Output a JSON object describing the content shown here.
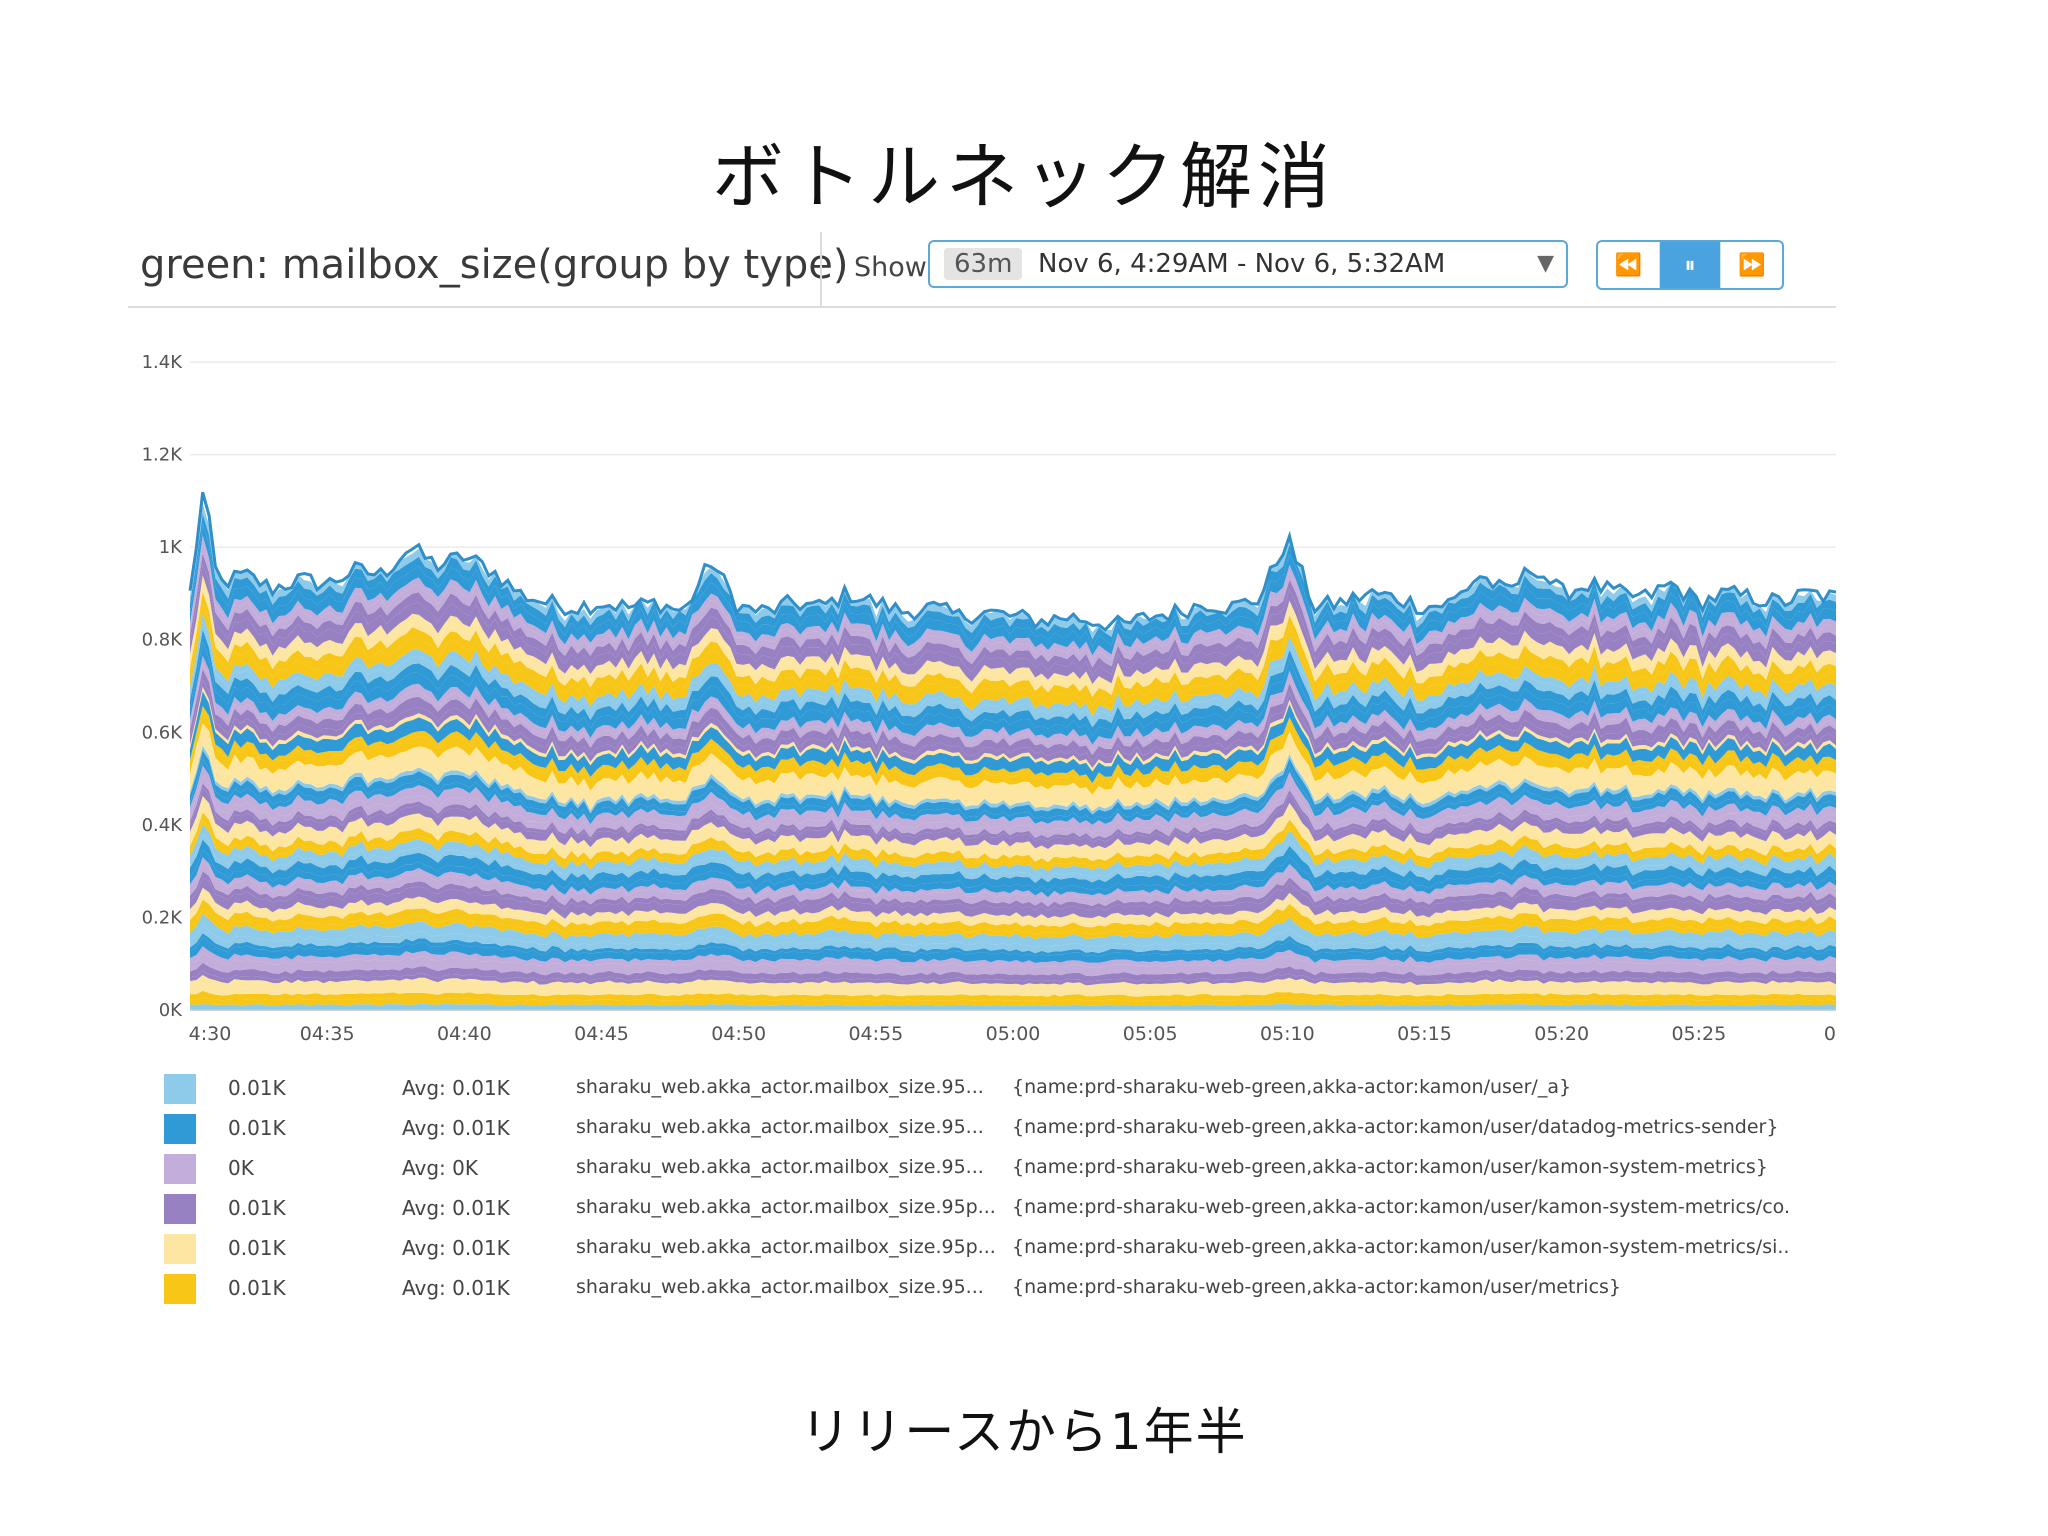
{
  "slide_title": "ボトルネック解消",
  "caption": "リリースから1年半",
  "widget": {
    "title": "green: mailbox_size(group by type)",
    "show_label": "Show",
    "duration": "63m",
    "range": "Nov 6, 4:29AM - Nov 6, 5:32AM",
    "caret": "▼",
    "controls": {
      "rewind": "⏪",
      "pause": "⏸",
      "forward": "⏩"
    }
  },
  "chart_data": {
    "type": "area",
    "stacked": true,
    "title": "green: mailbox_size(group by type)",
    "xlabel": "",
    "ylabel": "",
    "ylim": [
      0,
      1400
    ],
    "yticks": [
      0,
      200,
      400,
      600,
      800,
      1000,
      1200,
      1400
    ],
    "ytick_labels": [
      "0K",
      "0.2K",
      "0.4K",
      "0.6K",
      "0.8K",
      "1K",
      "1.2K",
      "1.4K"
    ],
    "xlim_minutes": [
      0,
      60
    ],
    "xticks_minutes": [
      0,
      5,
      10,
      15,
      20,
      25,
      30,
      35,
      40,
      45,
      50,
      55,
      60
    ],
    "xtick_labels": [
      "4:30",
      "04:35",
      "04:40",
      "04:45",
      "04:50",
      "04:55",
      "05:00",
      "05:05",
      "05:10",
      "05:15",
      "05:20",
      "05:25",
      "0"
    ],
    "total_profile": {
      "x_minutes": [
        0,
        0.5,
        1,
        2,
        3,
        4,
        5,
        6,
        7,
        8,
        9,
        10,
        11,
        12,
        13,
        14,
        15,
        16,
        17,
        18,
        19,
        20,
        21,
        22,
        23,
        24,
        25,
        26,
        27,
        28,
        29,
        30,
        31,
        32,
        33,
        34,
        35,
        36,
        37,
        38,
        39,
        40,
        41,
        42,
        43,
        44,
        45,
        46,
        47,
        48,
        49,
        50,
        51,
        52,
        53,
        54,
        55,
        56,
        57,
        58,
        59,
        60
      ],
      "y": [
        900,
        1130,
        920,
        940,
        910,
        930,
        920,
        950,
        940,
        1000,
        960,
        980,
        950,
        900,
        880,
        870,
        880,
        870,
        880,
        860,
        970,
        870,
        860,
        880,
        870,
        900,
        880,
        860,
        870,
        850,
        860,
        850,
        840,
        850,
        840,
        830,
        850,
        860,
        880,
        870,
        890,
        1020,
        870,
        880,
        900,
        890,
        870,
        880,
        940,
        900,
        960,
        900,
        920,
        900,
        890,
        920,
        880,
        900,
        890,
        880,
        900,
        890
      ]
    },
    "band_count": 60,
    "band_colors": [
      "#8ecbea",
      "#2f9ad6",
      "#c3aedb",
      "#9881c2",
      "#fde6a2",
      "#f7c617"
    ],
    "series": [
      {
        "color": "#8ecbea",
        "value": "0.01K",
        "avg": "Avg: 0.01K",
        "metric": "sharaku_web.akka_actor.mailbox_size.95...",
        "tags": "{name:prd-sharaku-web-green,akka-actor:kamon/user/_a}"
      },
      {
        "color": "#2f9ad6",
        "value": "0.01K",
        "avg": "Avg: 0.01K",
        "metric": "sharaku_web.akka_actor.mailbox_size.95...",
        "tags": "{name:prd-sharaku-web-green,akka-actor:kamon/user/datadog-metrics-sender}"
      },
      {
        "color": "#c3aedb",
        "value": "0K",
        "avg": "Avg: 0K",
        "metric": "sharaku_web.akka_actor.mailbox_size.95...",
        "tags": "{name:prd-sharaku-web-green,akka-actor:kamon/user/kamon-system-metrics}"
      },
      {
        "color": "#9881c2",
        "value": "0.01K",
        "avg": "Avg: 0.01K",
        "metric": "sharaku_web.akka_actor.mailbox_size.95p...",
        "tags": "{name:prd-sharaku-web-green,akka-actor:kamon/user/kamon-system-metrics/co."
      },
      {
        "color": "#fde6a2",
        "value": "0.01K",
        "avg": "Avg: 0.01K",
        "metric": "sharaku_web.akka_actor.mailbox_size.95p...",
        "tags": "{name:prd-sharaku-web-green,akka-actor:kamon/user/kamon-system-metrics/si.."
      },
      {
        "color": "#f7c617",
        "value": "0.01K",
        "avg": "Avg: 0.01K",
        "metric": "sharaku_web.akka_actor.mailbox_size.95...",
        "tags": "{name:prd-sharaku-web-green,akka-actor:kamon/user/metrics}"
      }
    ]
  }
}
